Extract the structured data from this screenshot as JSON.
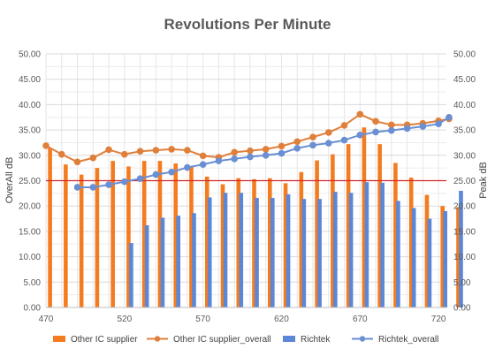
{
  "chart_data": {
    "type": "bar+line",
    "title": "Revolutions Per Minute",
    "ylabel_left": "OverAll dB",
    "ylabel_right": "Peak dB",
    "xlim": [
      470,
      725
    ],
    "ylim": [
      0,
      50
    ],
    "x_ticks": [
      470,
      520,
      570,
      620,
      670,
      720
    ],
    "y_ticks": [
      0,
      5,
      10,
      15,
      20,
      25,
      30,
      35,
      40,
      45,
      50
    ],
    "y_tick_labels": [
      "0.00",
      "5.00",
      "10.00",
      "15.00",
      "20.00",
      "25.00",
      "30.00",
      "35.00",
      "40.00",
      "45.00",
      "50.00"
    ],
    "reference_line": {
      "y": 25,
      "color": "#d62728"
    },
    "grid": true,
    "legend_position": "bottom",
    "x": [
      470,
      480,
      490,
      500,
      510,
      520,
      530,
      540,
      550,
      560,
      570,
      580,
      590,
      600,
      610,
      620,
      630,
      640,
      650,
      660,
      670,
      680,
      690,
      700,
      710,
      720,
      730
    ],
    "series": [
      {
        "name": "Other IC supplier",
        "kind": "bar",
        "color": "#f47c20",
        "values": [
          31.4,
          28.2,
          26.2,
          27.5,
          28.9,
          27.8,
          28.9,
          28.9,
          28.4,
          27.9,
          25.8,
          24.3,
          25.5,
          25.3,
          25.5,
          24.5,
          26.7,
          29.0,
          30.2,
          32.2,
          35.5,
          32.2,
          28.5,
          25.6,
          22.2,
          20.0,
          19.8
        ]
      },
      {
        "name": "Other IC supplier_overall",
        "kind": "line",
        "color": "#e07f3a",
        "values": [
          31.9,
          30.2,
          28.7,
          29.5,
          31.1,
          30.2,
          30.8,
          31.0,
          31.2,
          31.0,
          29.9,
          29.6,
          30.6,
          30.9,
          31.2,
          31.8,
          32.7,
          33.6,
          34.5,
          35.9,
          38.1,
          36.7,
          36.0,
          36.0,
          36.3,
          36.8,
          37.2
        ]
      },
      {
        "name": "Richtek",
        "kind": "bar",
        "color": "#5b87d6",
        "values": [
          null,
          null,
          null,
          null,
          null,
          12.7,
          16.2,
          17.7,
          18.1,
          18.6,
          21.7,
          22.6,
          22.6,
          21.6,
          21.6,
          22.3,
          21.4,
          21.4,
          22.8,
          22.6,
          24.7,
          24.6,
          21.0,
          19.6,
          17.5,
          19.0,
          23.0
        ]
      },
      {
        "name": "Richtek_overall",
        "kind": "line",
        "color": "#6a8fd2",
        "values": [
          null,
          null,
          23.7,
          23.7,
          24.2,
          24.8,
          25.4,
          26.2,
          26.7,
          27.6,
          28.2,
          28.9,
          29.3,
          29.7,
          30.0,
          30.4,
          31.4,
          32.0,
          32.4,
          33.0,
          34.0,
          34.6,
          34.9,
          35.3,
          35.7,
          36.2,
          37.5
        ]
      }
    ]
  }
}
